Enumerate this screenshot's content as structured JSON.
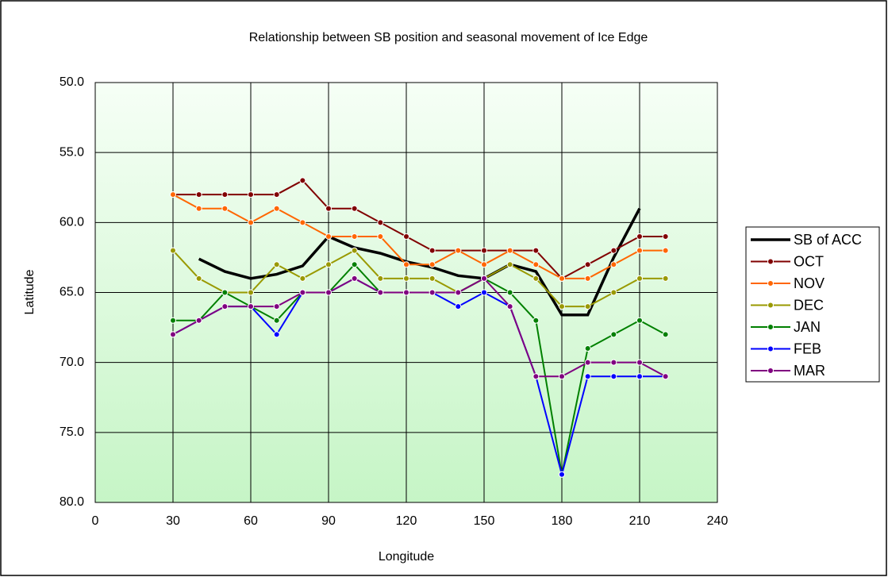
{
  "chart_data": {
    "type": "line",
    "title": "Relationship between SB position and seasonal movement of Ice Edge",
    "x_label": "Longitude",
    "y_label": "Latitude",
    "x": [
      30,
      40,
      50,
      60,
      70,
      80,
      90,
      100,
      110,
      120,
      130,
      140,
      150,
      160,
      170,
      180,
      190,
      200,
      210,
      220
    ],
    "xlim": [
      0,
      240
    ],
    "xticks": [
      0,
      30,
      60,
      90,
      120,
      150,
      180,
      210,
      240
    ],
    "ylim": [
      80,
      50
    ],
    "yticks": [
      {
        "value": 50,
        "label": "50.0"
      },
      {
        "value": 55,
        "label": "55.0"
      },
      {
        "value": 60,
        "label": "60.0"
      },
      {
        "value": 65,
        "label": "65.0"
      },
      {
        "value": 70,
        "label": "70.0"
      },
      {
        "value": 75,
        "label": "75.0"
      },
      {
        "value": 80,
        "label": "80.0"
      }
    ],
    "grid": true,
    "legend": "right",
    "series": [
      {
        "name": "SB of ACC",
        "color": "#000000",
        "values": [
          null,
          62.6,
          63.5,
          64,
          63.7,
          63.1,
          61,
          61.8,
          62.2,
          62.8,
          63.2,
          63.8,
          64,
          63,
          63.5,
          66.6,
          66.6,
          62.5,
          59,
          null
        ]
      },
      {
        "name": "OCT",
        "color": "#800000",
        "values": [
          58,
          58,
          58,
          58,
          58,
          57,
          59,
          59,
          60,
          61,
          62,
          62,
          62,
          62,
          62,
          64,
          63,
          62,
          61,
          61
        ]
      },
      {
        "name": "NOV",
        "color": "#ff6600",
        "values": [
          58,
          59,
          59,
          60,
          59,
          60,
          61,
          61,
          61,
          63,
          63,
          62,
          63,
          62,
          63,
          64,
          64,
          63,
          62,
          62
        ]
      },
      {
        "name": "DEC",
        "color": "#999900",
        "values": [
          62,
          64,
          65,
          65,
          63,
          64,
          63,
          62,
          64,
          64,
          64,
          65,
          64,
          63,
          64,
          66,
          66,
          65,
          64,
          64
        ]
      },
      {
        "name": "JAN",
        "color": "#008000",
        "values": [
          67,
          67,
          65,
          66,
          67,
          65,
          65,
          63,
          65,
          65,
          65,
          65,
          64,
          65,
          67,
          78,
          69,
          68,
          67,
          68
        ]
      },
      {
        "name": "FEB",
        "color": "#0000ff",
        "values": [
          68,
          67,
          66,
          66,
          68,
          65,
          65,
          64,
          65,
          65,
          65,
          66,
          65,
          66,
          71,
          78,
          71,
          71,
          71,
          71
        ]
      },
      {
        "name": "MAR",
        "color": "#800080",
        "values": [
          68,
          67,
          66,
          66,
          66,
          65,
          65,
          64,
          65,
          65,
          65,
          65,
          64,
          66,
          71,
          71,
          70,
          70,
          70,
          71
        ]
      }
    ]
  }
}
